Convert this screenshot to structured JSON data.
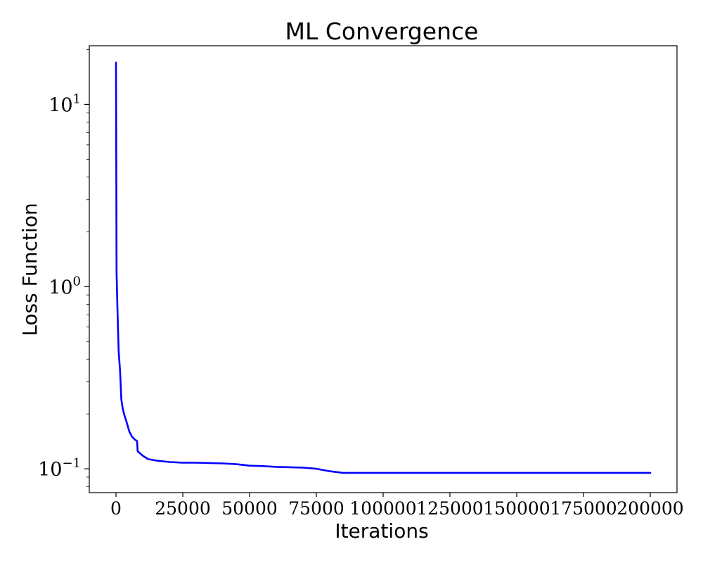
{
  "chart_data": {
    "type": "line",
    "title": "ML Convergence",
    "xlabel": "Iterations",
    "ylabel": "Loss Function",
    "xlim": [
      -10000,
      210000
    ],
    "ylim": [
      0.074,
      21
    ],
    "yscale": "log",
    "grid": false,
    "line_color": "#0000ff",
    "xticks": [
      0,
      25000,
      50000,
      75000,
      100000,
      125000,
      150000,
      175000,
      200000
    ],
    "xtick_labels": [
      "0",
      "25000",
      "50000",
      "75000",
      "100000",
      "125000",
      "150000",
      "175000",
      "200000"
    ],
    "yticks": [
      {
        "value": 10,
        "base": "10",
        "exp": "1"
      },
      {
        "value": 1,
        "base": "10",
        "exp": "0"
      },
      {
        "value": 0.1,
        "base": "10",
        "exp": "−1"
      }
    ],
    "series": [
      {
        "x": [
          0,
          200,
          500,
          1000,
          1500,
          2000,
          2500,
          3000,
          4000,
          5000,
          6000,
          7000,
          7900,
          8100,
          10000,
          12000,
          15000,
          20000,
          25000,
          30000,
          35000,
          40000,
          45000,
          50000,
          55000,
          60000,
          65000,
          70000,
          75000,
          80000,
          85000,
          90000,
          100000,
          125000,
          150000,
          175000,
          200000
        ],
        "y": [
          17,
          1.2,
          0.8,
          0.44,
          0.35,
          0.24,
          0.215,
          0.2,
          0.18,
          0.16,
          0.15,
          0.145,
          0.142,
          0.125,
          0.118,
          0.113,
          0.111,
          0.109,
          0.108,
          0.108,
          0.1075,
          0.107,
          0.106,
          0.104,
          0.1035,
          0.1025,
          0.102,
          0.1015,
          0.1,
          0.097,
          0.095,
          0.095,
          0.095,
          0.095,
          0.095,
          0.095,
          0.095
        ]
      }
    ]
  }
}
